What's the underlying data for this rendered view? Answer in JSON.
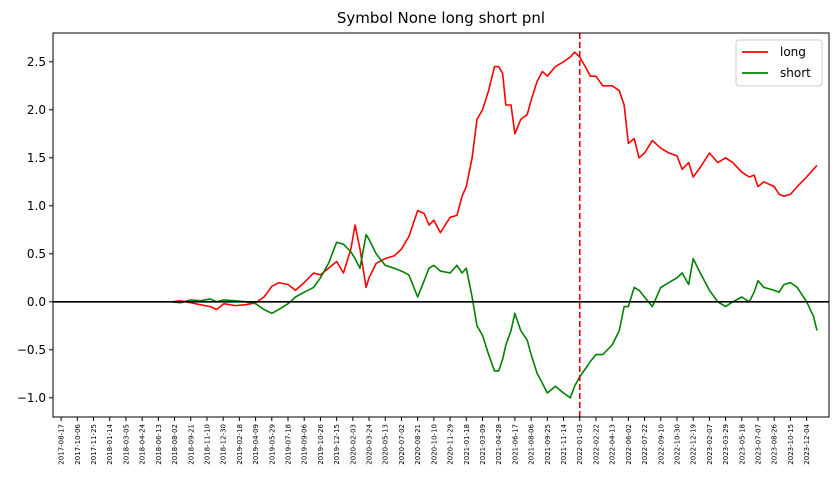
{
  "chart_data": {
    "type": "line",
    "title": "Symbol None long short pnl",
    "xlabel": "",
    "ylabel": "",
    "ylim": [
      -1.2,
      2.8
    ],
    "yticks": [
      -1.0,
      -0.5,
      0.0,
      0.5,
      1.0,
      1.5,
      2.0,
      2.5
    ],
    "ytick_labels": [
      "−1.0",
      "−0.5",
      "0.0",
      "0.5",
      "1.0",
      "1.5",
      "2.0",
      "2.5"
    ],
    "x_start_date": "2017-07-23",
    "x_end_date": "2024-02-11",
    "xtick_labels": [
      "2017-08-17",
      "2017-10-06",
      "2017-11-25",
      "2018-01-14",
      "2018-03-05",
      "2018-04-24",
      "2018-06-13",
      "2018-08-02",
      "2018-09-21",
      "2018-11-10",
      "2018-12-30",
      "2019-02-18",
      "2019-04-09",
      "2019-05-29",
      "2019-07-18",
      "2019-09-06",
      "2019-10-26",
      "2019-12-15",
      "2020-02-03",
      "2020-03-24",
      "2020-05-13",
      "2020-07-02",
      "2020-08-21",
      "2020-10-10",
      "2020-11-29",
      "2021-01-18",
      "2021-03-09",
      "2021-04-28",
      "2021-06-17",
      "2021-08-06",
      "2021-09-25",
      "2021-11-14",
      "2022-01-03",
      "2022-02-22",
      "2022-04-13",
      "2022-06-02",
      "2022-07-22",
      "2022-09-10",
      "2022-10-30",
      "2022-12-19",
      "2023-02-07",
      "2023-03-29",
      "2023-05-18",
      "2023-07-07",
      "2023-08-26",
      "2023-10-15",
      "2023-12-04"
    ],
    "grid": false,
    "legend_position": "top-right",
    "split_date": "2022-01-03",
    "zero_line": 0.0,
    "series": [
      {
        "name": "long",
        "color": "#ff0000",
        "points": [
          [
            "2018-07-25",
            0.0
          ],
          [
            "2018-08-20",
            0.01
          ],
          [
            "2018-09-21",
            -0.01
          ],
          [
            "2018-10-20",
            -0.03
          ],
          [
            "2018-11-20",
            -0.05
          ],
          [
            "2018-12-10",
            -0.08
          ],
          [
            "2019-01-01",
            -0.02
          ],
          [
            "2019-02-05",
            -0.04
          ],
          [
            "2019-03-10",
            -0.03
          ],
          [
            "2019-04-09",
            -0.01
          ],
          [
            "2019-05-05",
            0.05
          ],
          [
            "2019-05-29",
            0.16
          ],
          [
            "2019-06-20",
            0.2
          ],
          [
            "2019-07-18",
            0.18
          ],
          [
            "2019-08-10",
            0.12
          ],
          [
            "2019-09-06",
            0.2
          ],
          [
            "2019-10-05",
            0.3
          ],
          [
            "2019-10-26",
            0.28
          ],
          [
            "2019-11-20",
            0.35
          ],
          [
            "2019-12-15",
            0.42
          ],
          [
            "2020-01-05",
            0.3
          ],
          [
            "2020-01-28",
            0.55
          ],
          [
            "2020-02-10",
            0.8
          ],
          [
            "2020-02-25",
            0.55
          ],
          [
            "2020-03-15",
            0.15
          ],
          [
            "2020-03-24",
            0.25
          ],
          [
            "2020-04-15",
            0.4
          ],
          [
            "2020-05-13",
            0.45
          ],
          [
            "2020-06-10",
            0.48
          ],
          [
            "2020-07-02",
            0.55
          ],
          [
            "2020-07-25",
            0.68
          ],
          [
            "2020-08-21",
            0.95
          ],
          [
            "2020-09-10",
            0.92
          ],
          [
            "2020-09-25",
            0.8
          ],
          [
            "2020-10-10",
            0.85
          ],
          [
            "2020-10-30",
            0.72
          ],
          [
            "2020-11-29",
            0.88
          ],
          [
            "2020-12-20",
            0.9
          ],
          [
            "2021-01-05",
            1.1
          ],
          [
            "2021-01-18",
            1.2
          ],
          [
            "2021-02-05",
            1.5
          ],
          [
            "2021-02-20",
            1.9
          ],
          [
            "2021-03-09",
            2.0
          ],
          [
            "2021-03-28",
            2.2
          ],
          [
            "2021-04-15",
            2.45
          ],
          [
            "2021-04-28",
            2.45
          ],
          [
            "2021-05-10",
            2.38
          ],
          [
            "2021-05-20",
            2.05
          ],
          [
            "2021-06-05",
            2.05
          ],
          [
            "2021-06-17",
            1.75
          ],
          [
            "2021-07-05",
            1.9
          ],
          [
            "2021-07-25",
            1.95
          ],
          [
            "2021-08-06",
            2.1
          ],
          [
            "2021-08-25",
            2.3
          ],
          [
            "2021-09-10",
            2.4
          ],
          [
            "2021-09-25",
            2.35
          ],
          [
            "2021-10-20",
            2.45
          ],
          [
            "2021-11-14",
            2.5
          ],
          [
            "2021-12-05",
            2.55
          ],
          [
            "2021-12-18",
            2.6
          ],
          [
            "2022-01-03",
            2.55
          ],
          [
            "2022-01-20",
            2.45
          ],
          [
            "2022-02-05",
            2.35
          ],
          [
            "2022-02-22",
            2.35
          ],
          [
            "2022-03-15",
            2.25
          ],
          [
            "2022-04-13",
            2.25
          ],
          [
            "2022-05-05",
            2.2
          ],
          [
            "2022-05-20",
            2.05
          ],
          [
            "2022-06-02",
            1.65
          ],
          [
            "2022-06-20",
            1.7
          ],
          [
            "2022-07-05",
            1.5
          ],
          [
            "2022-07-22",
            1.55
          ],
          [
            "2022-08-15",
            1.68
          ],
          [
            "2022-09-10",
            1.6
          ],
          [
            "2022-10-05",
            1.55
          ],
          [
            "2022-10-30",
            1.52
          ],
          [
            "2022-11-15",
            1.38
          ],
          [
            "2022-12-05",
            1.45
          ],
          [
            "2022-12-19",
            1.3
          ],
          [
            "2023-01-10",
            1.4
          ],
          [
            "2023-02-07",
            1.55
          ],
          [
            "2023-03-05",
            1.45
          ],
          [
            "2023-03-29",
            1.5
          ],
          [
            "2023-04-20",
            1.45
          ],
          [
            "2023-05-18",
            1.35
          ],
          [
            "2023-06-10",
            1.3
          ],
          [
            "2023-06-25",
            1.32
          ],
          [
            "2023-07-07",
            1.2
          ],
          [
            "2023-07-25",
            1.25
          ],
          [
            "2023-08-26",
            1.2
          ],
          [
            "2023-09-10",
            1.12
          ],
          [
            "2023-09-25",
            1.1
          ],
          [
            "2023-10-15",
            1.12
          ],
          [
            "2023-11-05",
            1.2
          ],
          [
            "2023-12-04",
            1.3
          ],
          [
            "2023-12-25",
            1.38
          ],
          [
            "2024-01-05",
            1.42
          ]
        ]
      },
      {
        "name": "short",
        "color": "#008000",
        "points": [
          [
            "2018-07-25",
            0.0
          ],
          [
            "2018-08-20",
            -0.01
          ],
          [
            "2018-09-21",
            0.02
          ],
          [
            "2018-10-20",
            0.01
          ],
          [
            "2018-11-20",
            0.03
          ],
          [
            "2018-12-10",
            0.0
          ],
          [
            "2019-01-01",
            0.02
          ],
          [
            "2019-02-05",
            0.01
          ],
          [
            "2019-03-10",
            0.0
          ],
          [
            "2019-04-09",
            -0.02
          ],
          [
            "2019-05-05",
            -0.08
          ],
          [
            "2019-05-29",
            -0.12
          ],
          [
            "2019-06-20",
            -0.08
          ],
          [
            "2019-07-18",
            -0.02
          ],
          [
            "2019-08-10",
            0.05
          ],
          [
            "2019-09-06",
            0.1
          ],
          [
            "2019-10-05",
            0.15
          ],
          [
            "2019-10-26",
            0.25
          ],
          [
            "2019-11-20",
            0.4
          ],
          [
            "2019-12-15",
            0.62
          ],
          [
            "2020-01-05",
            0.6
          ],
          [
            "2020-01-28",
            0.52
          ],
          [
            "2020-02-10",
            0.45
          ],
          [
            "2020-02-25",
            0.35
          ],
          [
            "2020-03-15",
            0.7
          ],
          [
            "2020-03-24",
            0.65
          ],
          [
            "2020-04-15",
            0.5
          ],
          [
            "2020-05-13",
            0.38
          ],
          [
            "2020-06-10",
            0.35
          ],
          [
            "2020-07-02",
            0.32
          ],
          [
            "2020-07-25",
            0.28
          ],
          [
            "2020-08-21",
            0.05
          ],
          [
            "2020-09-10",
            0.22
          ],
          [
            "2020-09-25",
            0.35
          ],
          [
            "2020-10-10",
            0.38
          ],
          [
            "2020-10-30",
            0.32
          ],
          [
            "2020-11-29",
            0.3
          ],
          [
            "2020-12-20",
            0.38
          ],
          [
            "2021-01-05",
            0.3
          ],
          [
            "2021-01-18",
            0.35
          ],
          [
            "2021-02-05",
            0.05
          ],
          [
            "2021-02-20",
            -0.25
          ],
          [
            "2021-03-09",
            -0.35
          ],
          [
            "2021-03-28",
            -0.55
          ],
          [
            "2021-04-15",
            -0.72
          ],
          [
            "2021-04-28",
            -0.72
          ],
          [
            "2021-05-10",
            -0.6
          ],
          [
            "2021-05-20",
            -0.45
          ],
          [
            "2021-06-05",
            -0.3
          ],
          [
            "2021-06-17",
            -0.12
          ],
          [
            "2021-07-05",
            -0.3
          ],
          [
            "2021-07-25",
            -0.4
          ],
          [
            "2021-08-06",
            -0.55
          ],
          [
            "2021-08-25",
            -0.75
          ],
          [
            "2021-09-10",
            -0.85
          ],
          [
            "2021-09-25",
            -0.95
          ],
          [
            "2021-10-20",
            -0.88
          ],
          [
            "2021-11-14",
            -0.95
          ],
          [
            "2021-12-05",
            -1.0
          ],
          [
            "2021-12-18",
            -0.88
          ],
          [
            "2022-01-03",
            -0.78
          ],
          [
            "2022-01-20",
            -0.7
          ],
          [
            "2022-02-05",
            -0.62
          ],
          [
            "2022-02-22",
            -0.55
          ],
          [
            "2022-03-15",
            -0.55
          ],
          [
            "2022-04-13",
            -0.45
          ],
          [
            "2022-05-05",
            -0.3
          ],
          [
            "2022-05-20",
            -0.05
          ],
          [
            "2022-06-02",
            -0.05
          ],
          [
            "2022-06-20",
            0.15
          ],
          [
            "2022-07-05",
            0.12
          ],
          [
            "2022-07-22",
            0.05
          ],
          [
            "2022-08-15",
            -0.05
          ],
          [
            "2022-09-10",
            0.15
          ],
          [
            "2022-10-05",
            0.2
          ],
          [
            "2022-10-30",
            0.25
          ],
          [
            "2022-11-15",
            0.3
          ],
          [
            "2022-12-05",
            0.18
          ],
          [
            "2022-12-19",
            0.45
          ],
          [
            "2023-01-10",
            0.3
          ],
          [
            "2023-02-07",
            0.12
          ],
          [
            "2023-03-05",
            0.0
          ],
          [
            "2023-03-29",
            -0.05
          ],
          [
            "2023-04-20",
            0.0
          ],
          [
            "2023-05-18",
            0.05
          ],
          [
            "2023-06-10",
            0.0
          ],
          [
            "2023-06-25",
            0.1
          ],
          [
            "2023-07-07",
            0.22
          ],
          [
            "2023-07-25",
            0.15
          ],
          [
            "2023-08-26",
            0.12
          ],
          [
            "2023-09-10",
            0.1
          ],
          [
            "2023-09-25",
            0.18
          ],
          [
            "2023-10-15",
            0.2
          ],
          [
            "2023-11-05",
            0.15
          ],
          [
            "2023-12-04",
            0.0
          ],
          [
            "2023-12-25",
            -0.15
          ],
          [
            "2024-01-05",
            -0.3
          ]
        ]
      }
    ]
  }
}
